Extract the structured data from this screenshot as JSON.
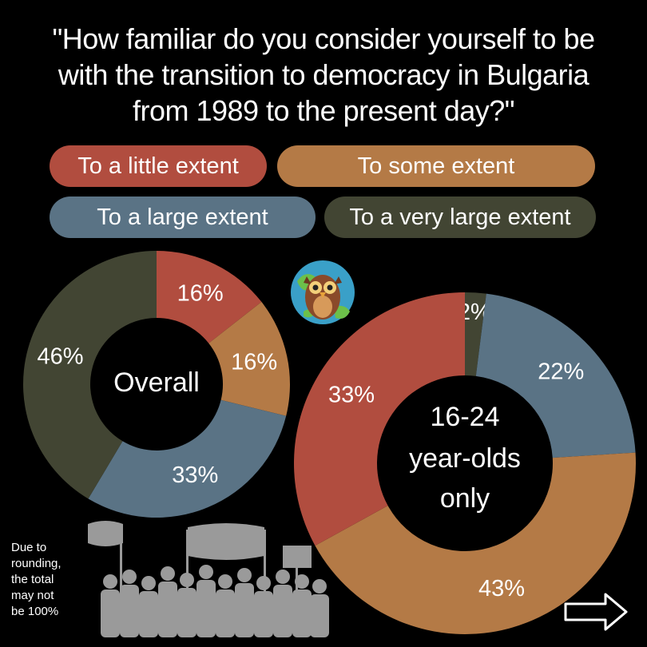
{
  "title_lines": [
    "\"How familiar do you consider yourself to be",
    "with the transition to democracy in Bulgaria",
    "from 1989 to the present day?\""
  ],
  "legend": [
    {
      "label": "To a little extent",
      "color": "#b14d3f"
    },
    {
      "label": "To some extent",
      "color": "#b47a46"
    },
    {
      "label": "To a large extent",
      "color": "#5a7385"
    },
    {
      "label": "To a very large extent",
      "color": "#424533"
    }
  ],
  "footnote": "Due to\nrounding,\nthe total\nmay not\nbe 100%",
  "chart_data": [
    {
      "type": "pie",
      "center_label": [
        "Overall"
      ],
      "categories": [
        "To a little extent",
        "To some extent",
        "To a large extent",
        "To a very large extent"
      ],
      "values": [
        16,
        16,
        33,
        46
      ],
      "data_labels": [
        "16%",
        "16%",
        "33%",
        "46%"
      ],
      "colors": [
        "#b14d3f",
        "#b47a46",
        "#5a7385",
        "#424533"
      ]
    },
    {
      "type": "pie",
      "center_label": [
        "16-24",
        "year-olds",
        "only"
      ],
      "categories": [
        "To a very large extent",
        "To a large extent",
        "To some extent",
        "To a little extent"
      ],
      "values": [
        2,
        22,
        43,
        33
      ],
      "data_labels": [
        "2%",
        "22%",
        "43%",
        "33%"
      ],
      "colors": [
        "#424533",
        "#5a7385",
        "#b47a46",
        "#b14d3f"
      ]
    }
  ]
}
